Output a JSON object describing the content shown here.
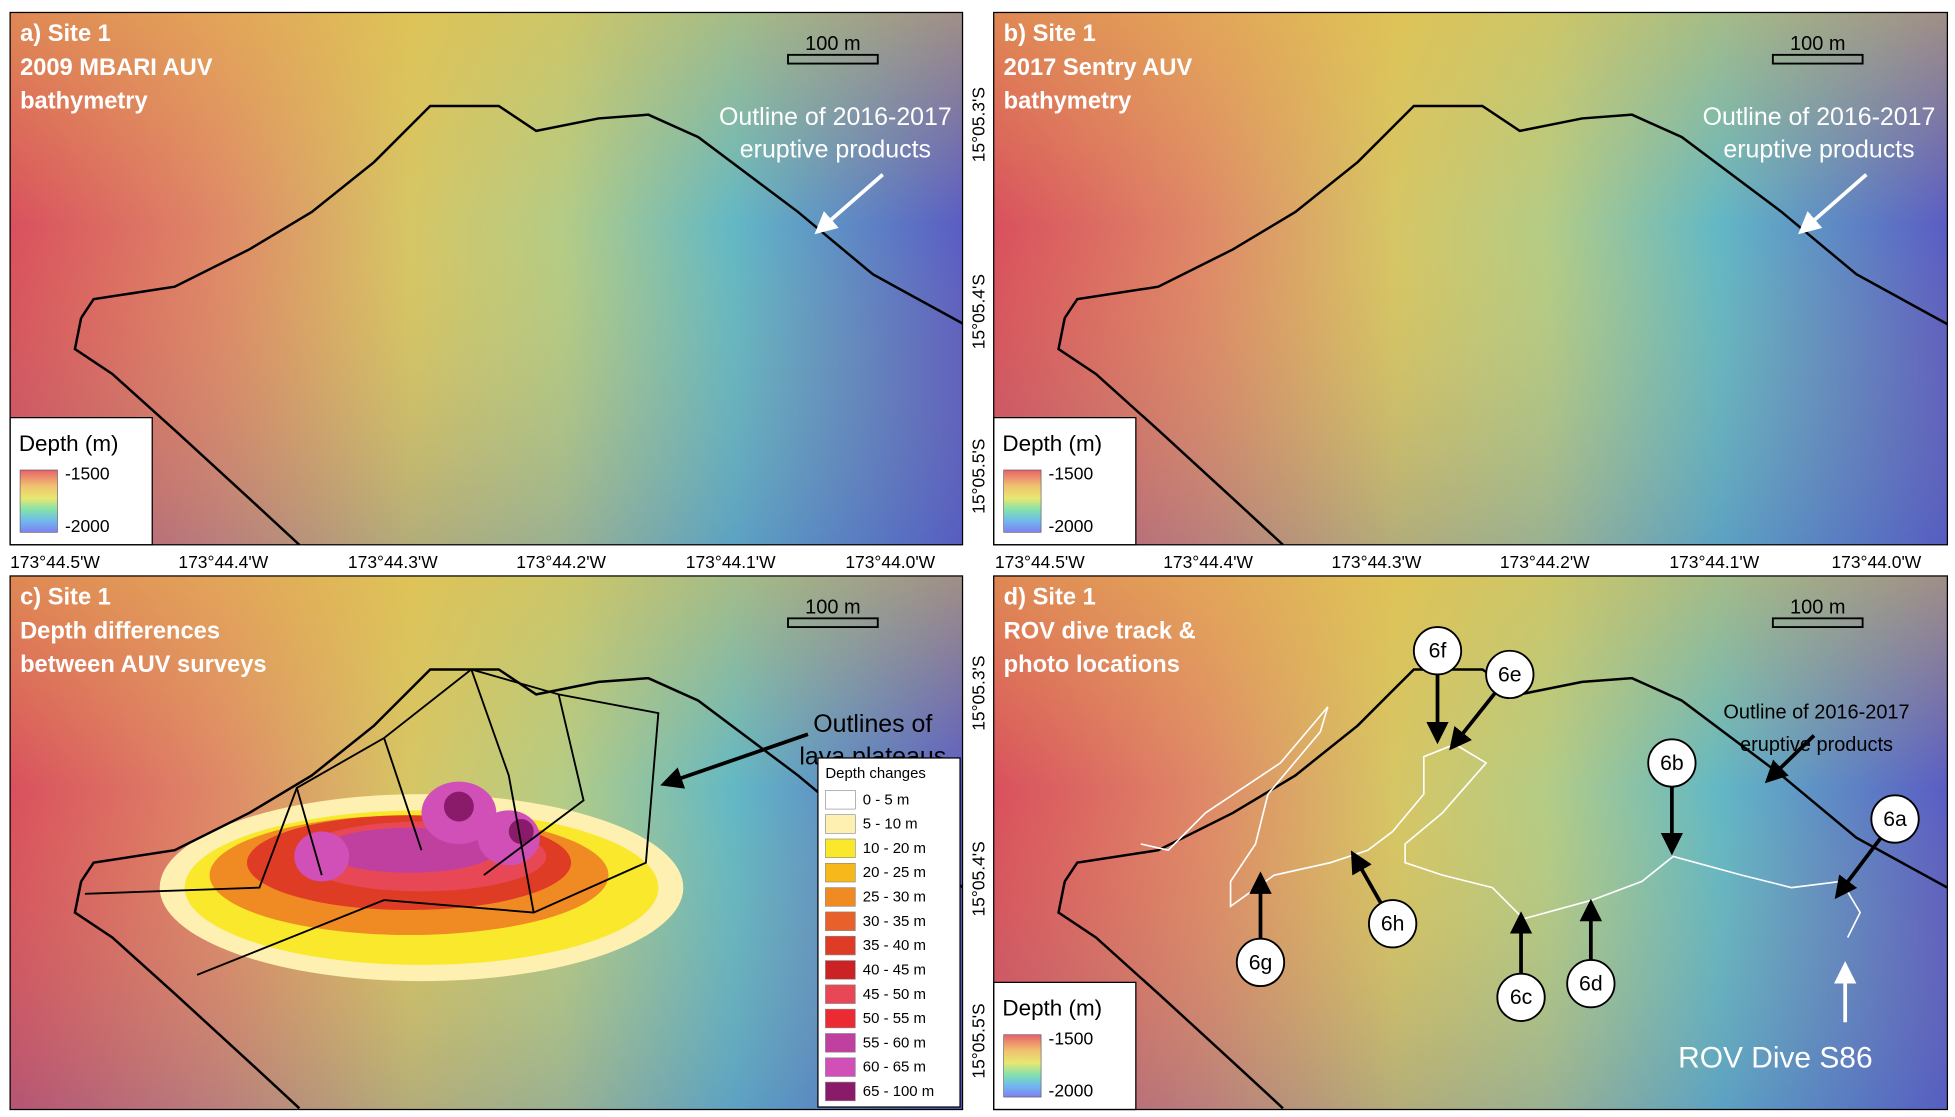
{
  "panels": [
    {
      "title_lines": [
        "a) Site 1",
        "2009 MBARI AUV",
        "bathymetry"
      ],
      "scale_bar": "100 m",
      "annotation": [
        "Outline of 2016-2017",
        "eruptive products"
      ],
      "depth_legend": {
        "title": "Depth (m)",
        "top": -1500,
        "bottom": -2000
      }
    },
    {
      "title_lines": [
        "b) Site 1",
        "2017 Sentry AUV",
        "bathymetry"
      ],
      "scale_bar": "100 m",
      "annotation": [
        "Outline of 2016-2017",
        "eruptive products"
      ],
      "depth_legend": {
        "title": "Depth (m)",
        "top": -1500,
        "bottom": -2000
      }
    },
    {
      "title_lines": [
        "c) Site 1",
        "Depth differences",
        "between AUV surveys"
      ],
      "scale_bar": "100 m",
      "annotation": [
        "Outlines of",
        "lava plateaus"
      ]
    },
    {
      "title_lines": [
        "d) Site 1",
        "ROV dive track &",
        "photo locations"
      ],
      "scale_bar": "100 m",
      "annotation": [
        "Outline of 2016-2017",
        "eruptive products"
      ],
      "depth_legend": {
        "title": "Depth (m)",
        "top": -1500,
        "bottom": -2000
      },
      "photo_locations": [
        "6a",
        "6b",
        "6c",
        "6d",
        "6e",
        "6f",
        "6g",
        "6h"
      ],
      "dive_label": "ROV Dive S86"
    }
  ],
  "longitude_labels": [
    "173°44.5'W",
    "173°44.4'W",
    "173°44.3'W",
    "173°44.2'W",
    "173°44.1'W",
    "173°44.0'W"
  ],
  "latitude_labels": [
    "15°05.3'S",
    "15°05.4'S",
    "15°05.5'S"
  ],
  "depth_changes": {
    "title": "Depth changes",
    "items": [
      {
        "label": "0 - 5 m",
        "color": "#ffffff"
      },
      {
        "label": "5 - 10 m",
        "color": "#fdf0b0"
      },
      {
        "label": "10 - 20 m",
        "color": "#f9e82c"
      },
      {
        "label": "20 - 25 m",
        "color": "#f7b81c"
      },
      {
        "label": "25 - 30 m",
        "color": "#f08a22"
      },
      {
        "label": "30 - 35 m",
        "color": "#e8602a"
      },
      {
        "label": "35 - 40 m",
        "color": "#df3c26"
      },
      {
        "label": "40 - 45 m",
        "color": "#cc2226"
      },
      {
        "label": "45 - 50 m",
        "color": "#e84855"
      },
      {
        "label": "50 - 55 m",
        "color": "#ec2a32"
      },
      {
        "label": "55 - 60 m",
        "color": "#c040a0"
      },
      {
        "label": "60 - 65 m",
        "color": "#d050b8"
      },
      {
        "label": "65 - 100 m",
        "color": "#8a1a6a"
      }
    ]
  }
}
